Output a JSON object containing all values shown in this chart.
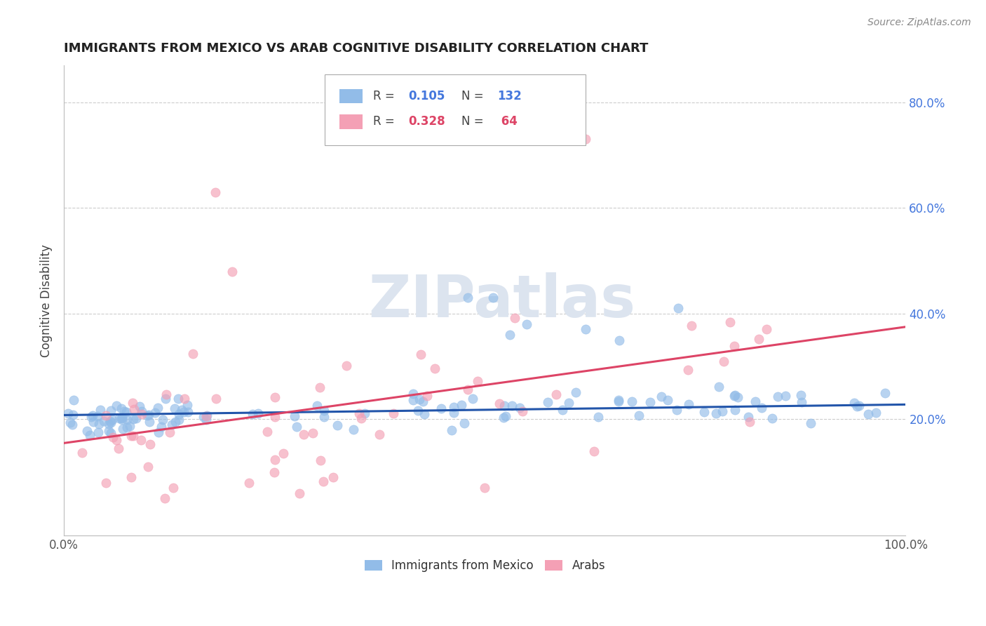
{
  "title": "IMMIGRANTS FROM MEXICO VS ARAB COGNITIVE DISABILITY CORRELATION CHART",
  "source": "Source: ZipAtlas.com",
  "ylabel": "Cognitive Disability",
  "xlim": [
    0.0,
    1.0
  ],
  "ylim": [
    -0.02,
    0.87
  ],
  "blue_color": "#92bce8",
  "pink_color": "#f4a0b5",
  "blue_line_color": "#2255aa",
  "pink_line_color": "#dd4466",
  "blue_N": 132,
  "pink_N": 64,
  "watermark": "ZIPatlas",
  "watermark_color": "#dce4ef",
  "background_color": "#ffffff",
  "grid_color": "#cccccc",
  "title_color": "#222222",
  "right_axis_color": "#4477dd",
  "pink_legend_color": "#dd4466",
  "legend_text_color": "#444444",
  "blue_line_start_y": 0.208,
  "blue_line_end_y": 0.228,
  "pink_line_start_y": 0.155,
  "pink_line_end_y": 0.375
}
